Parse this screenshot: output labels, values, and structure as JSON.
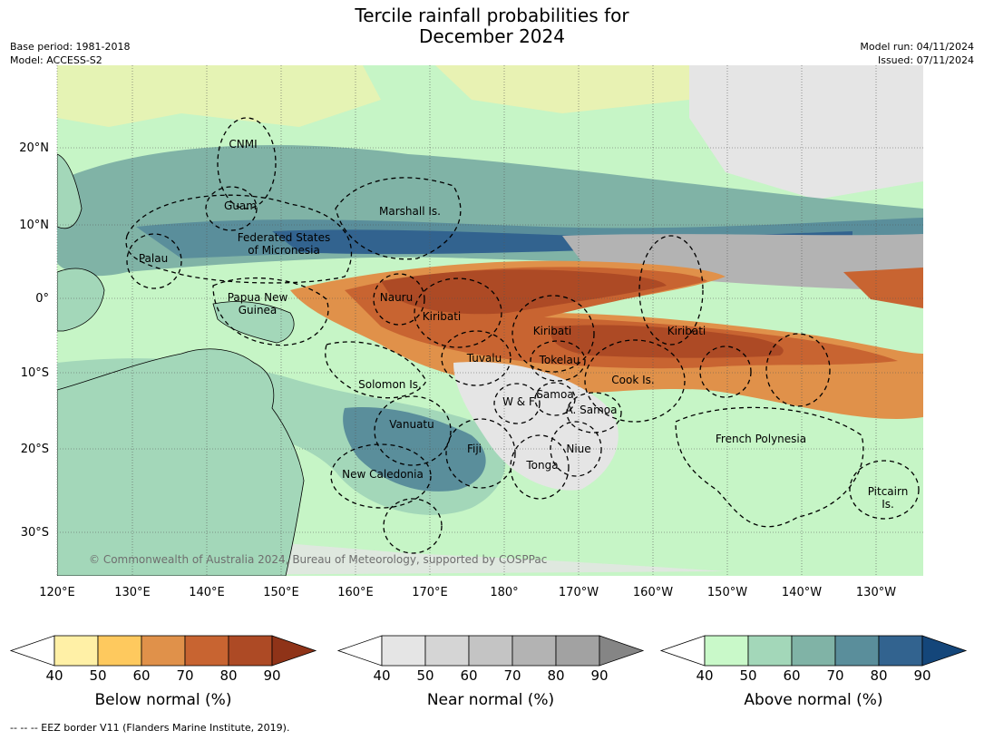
{
  "header": {
    "title_line1": "Tercile rainfall probabilities for",
    "title_line2": "December 2024",
    "base_period": "Base period: 1981-2018",
    "model": "Model: ACCESS-S2",
    "model_run": "Model run: 04/11/2024",
    "issued": "Issued: 07/11/2024"
  },
  "map": {
    "lon_labels": [
      "120°E",
      "130°E",
      "140°E",
      "150°E",
      "160°E",
      "170°E",
      "180°",
      "170°W",
      "160°W",
      "150°W",
      "140°W",
      "130°W"
    ],
    "lat_labels": [
      "20°N",
      "10°N",
      "0°",
      "10°S",
      "20°S",
      "30°S"
    ],
    "copyright": "© Commonwealth of Australia 2024, Bureau of Meteorology, supported by COSPPac",
    "places": [
      {
        "id": "cnmi",
        "text": [
          "CNMI"
        ]
      },
      {
        "id": "guam",
        "text": [
          "Guam"
        ]
      },
      {
        "id": "marshall",
        "text": [
          "Marshall Is."
        ]
      },
      {
        "id": "fsm",
        "text": [
          "Federated States",
          "of Micronesia"
        ]
      },
      {
        "id": "palau",
        "text": [
          "Palau"
        ]
      },
      {
        "id": "png",
        "text": [
          "Papua New",
          "Guinea"
        ]
      },
      {
        "id": "nauru",
        "text": [
          "Nauru"
        ]
      },
      {
        "id": "kiribati-w",
        "text": [
          "Kiribati"
        ]
      },
      {
        "id": "kiribati-c",
        "text": [
          "Kiribati"
        ]
      },
      {
        "id": "kiribati-e",
        "text": [
          "Kiribati"
        ]
      },
      {
        "id": "tuvalu",
        "text": [
          "Tuvalu"
        ]
      },
      {
        "id": "tokelau",
        "text": [
          "Tokelau"
        ]
      },
      {
        "id": "cook",
        "text": [
          "Cook Is."
        ]
      },
      {
        "id": "solomon",
        "text": [
          "Solomon Is."
        ]
      },
      {
        "id": "wf",
        "text": [
          "W & F"
        ]
      },
      {
        "id": "samoa",
        "text": [
          "Samoa"
        ]
      },
      {
        "id": "asamoa",
        "text": [
          "A. Samoa"
        ]
      },
      {
        "id": "vanuatu",
        "text": [
          "Vanuatu"
        ]
      },
      {
        "id": "fiji",
        "text": [
          "Fiji"
        ]
      },
      {
        "id": "niue",
        "text": [
          "Niue"
        ]
      },
      {
        "id": "tonga",
        "text": [
          "Tonga"
        ]
      },
      {
        "id": "frpoly",
        "text": [
          "French Polynesia"
        ]
      },
      {
        "id": "newcal",
        "text": [
          "New Caledonia"
        ]
      },
      {
        "id": "pitcairn",
        "text": [
          "Pitcairn",
          "Is."
        ]
      }
    ]
  },
  "colorbars": [
    {
      "id": "below",
      "label": "Below normal (%)",
      "ticks": [
        "40",
        "50",
        "60",
        "70",
        "80",
        "90"
      ],
      "colors": [
        "#ffffff",
        "#fff0a6",
        "#fec95e",
        "#e0914a",
        "#c86431",
        "#ad4a25",
        "#8f3318"
      ]
    },
    {
      "id": "near",
      "label": "Near normal (%)",
      "ticks": [
        "40",
        "50",
        "60",
        "70",
        "80",
        "90"
      ],
      "colors": [
        "#ffffff",
        "#e5e5e5",
        "#d5d5d5",
        "#c4c4c4",
        "#b3b3b3",
        "#a2a2a2",
        "#858585"
      ]
    },
    {
      "id": "above",
      "label": "Above normal (%)",
      "ticks": [
        "40",
        "50",
        "60",
        "70",
        "80",
        "90"
      ],
      "colors": [
        "#ffffff",
        "#c9f9c9",
        "#a3d7b9",
        "#80b3a6",
        "#5a8e9b",
        "#32638f",
        "#14467a"
      ]
    }
  ],
  "footer": "-- -- -- EEZ border V11 (Flanders Marine Institute, 2019)."
}
